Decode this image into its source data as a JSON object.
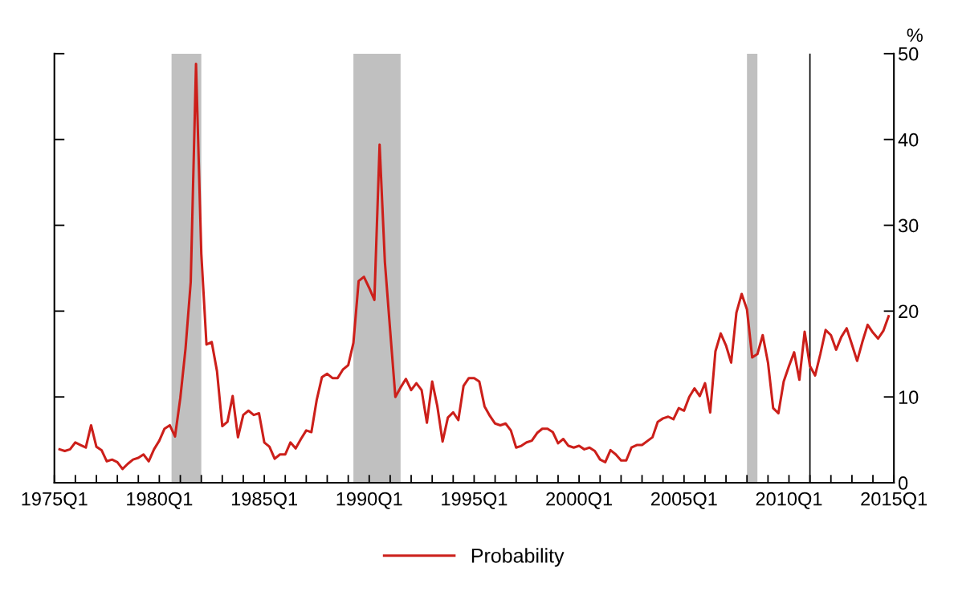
{
  "chart_data": {
    "type": "line",
    "ylabel": "%",
    "x": [
      "1975-04",
      "1975-07",
      "1975-10",
      "1976-01",
      "1976-04",
      "1976-07",
      "1976-10",
      "1977-01",
      "1977-04",
      "1977-07",
      "1977-10",
      "1978-01",
      "1978-04",
      "1978-07",
      "1978-10",
      "1979-01",
      "1979-04",
      "1979-07",
      "1979-10",
      "1980-01",
      "1980-04",
      "1980-07",
      "1980-10",
      "1981-01",
      "1981-04",
      "1981-07",
      "1981-10",
      "1982-01",
      "1982-04",
      "1982-07",
      "1982-10",
      "1983-01",
      "1983-04",
      "1983-07",
      "1983-10",
      "1984-01",
      "1984-04",
      "1984-07",
      "1984-10",
      "1985-01",
      "1985-04",
      "1985-07",
      "1985-10",
      "1986-01",
      "1986-04",
      "1986-07",
      "1986-10",
      "1987-01",
      "1987-04",
      "1987-07",
      "1987-10",
      "1988-01",
      "1988-04",
      "1988-07",
      "1988-10",
      "1989-01",
      "1989-04",
      "1989-07",
      "1989-10",
      "1990-01",
      "1990-04",
      "1990-07",
      "1990-10",
      "1991-01",
      "1991-04",
      "1991-07",
      "1991-10",
      "1992-01",
      "1992-04",
      "1992-07",
      "1992-10",
      "1993-01",
      "1993-04",
      "1993-07",
      "1993-10",
      "1994-01",
      "1994-04",
      "1994-07",
      "1994-10",
      "1995-01",
      "1995-04",
      "1995-07",
      "1995-10",
      "1996-01",
      "1996-04",
      "1996-07",
      "1996-10",
      "1997-01",
      "1997-04",
      "1997-07",
      "1997-10",
      "1998-01",
      "1998-04",
      "1998-07",
      "1998-10",
      "1999-01",
      "1999-04",
      "1999-07",
      "1999-10",
      "2000-01",
      "2000-04",
      "2000-07",
      "2000-10",
      "2001-01",
      "2001-04",
      "2001-07",
      "2001-10",
      "2002-01",
      "2002-04",
      "2002-07",
      "2002-10",
      "2003-01",
      "2003-07",
      "2003-10",
      "2004-01",
      "2004-04",
      "2004-07",
      "2004-10",
      "2005-01",
      "2005-04",
      "2005-07",
      "2005-10",
      "2006-01",
      "2006-04",
      "2006-07",
      "2006-10",
      "2007-01",
      "2007-04",
      "2007-07",
      "2007-10",
      "2008-01",
      "2008-04",
      "2008-07",
      "2008-10",
      "2009-01",
      "2009-04",
      "2009-07",
      "2009-10",
      "2010-01",
      "2010-04",
      "2010-07",
      "2010-10",
      "2011-01",
      "2011-04",
      "2011-07",
      "2011-10",
      "2012-01",
      "2012-04",
      "2012-07",
      "2012-10",
      "2013-01",
      "2013-04",
      "2013-07",
      "2013-10",
      "2014-01",
      "2014-04",
      "2014-07",
      "2014-10"
    ],
    "series": [
      {
        "name": "Probability",
        "color": "#cc1f1a",
        "values": [
          3.9,
          3.7,
          3.9,
          4.7,
          4.4,
          4.1,
          6.7,
          4.2,
          3.8,
          2.5,
          2.7,
          2.4,
          1.6,
          2.2,
          2.7,
          2.9,
          3.3,
          2.5,
          3.9,
          4.9,
          6.3,
          6.7,
          5.4,
          9.9,
          15.6,
          23.4,
          48.8,
          26.7,
          16.1,
          16.4,
          13.0,
          6.6,
          7.1,
          10.1,
          5.3,
          7.9,
          8.4,
          7.9,
          8.1,
          4.7,
          4.2,
          2.8,
          3.3,
          3.3,
          4.7,
          4.0,
          5.1,
          6.1,
          5.9,
          9.6,
          12.3,
          12.7,
          12.2,
          12.2,
          13.2,
          13.7,
          16.3,
          23.5,
          24.0,
          22.7,
          21.3,
          39.4,
          25.7,
          17.7,
          10.0,
          11.1,
          12.1,
          10.8,
          11.6,
          10.8,
          7.0,
          11.8,
          8.9,
          4.8,
          7.6,
          8.2,
          7.3,
          11.3,
          12.2,
          12.2,
          11.8,
          8.9,
          7.8,
          6.9,
          6.7,
          6.9,
          6.1,
          4.1,
          4.3,
          4.7,
          4.9,
          5.8,
          6.3,
          6.3,
          5.9,
          4.6,
          5.1,
          4.3,
          4.1,
          4.3,
          3.9,
          4.1,
          3.7,
          2.7,
          2.4,
          3.8,
          3.3,
          2.6,
          2.6,
          4.1,
          4.4,
          4.4,
          5.3,
          7.1,
          7.5,
          7.7,
          7.4,
          8.7,
          8.4,
          10.0,
          11.0,
          10.1,
          11.6,
          8.2,
          15.3,
          17.4,
          16.0,
          14.0,
          19.8,
          22.0,
          20.2,
          14.6,
          15.0,
          17.2,
          14.0,
          8.7,
          8.1,
          11.8,
          13.6,
          15.2,
          12.0,
          17.6,
          13.6,
          12.5,
          15.0,
          17.8,
          17.2,
          15.5,
          17.0,
          18.0,
          16.1,
          14.2,
          16.4,
          18.4,
          17.5,
          16.8,
          17.7,
          19.4
        ]
      }
    ],
    "xlim": [
      "1975-01",
      "2015-01"
    ],
    "xticks": [
      {
        "value": "1975-01",
        "label": "1975Q1"
      },
      {
        "value": "1976-01",
        "label": null
      },
      {
        "value": "1977-01",
        "label": null
      },
      {
        "value": "1978-01",
        "label": null
      },
      {
        "value": "1979-01",
        "label": null
      },
      {
        "value": "1980-01",
        "label": "1980Q1"
      },
      {
        "value": "1981-01",
        "label": null
      },
      {
        "value": "1982-01",
        "label": null
      },
      {
        "value": "1983-01",
        "label": null
      },
      {
        "value": "1984-01",
        "label": null
      },
      {
        "value": "1985-01",
        "label": "1985Q1"
      },
      {
        "value": "1986-01",
        "label": null
      },
      {
        "value": "1987-01",
        "label": null
      },
      {
        "value": "1988-01",
        "label": null
      },
      {
        "value": "1989-01",
        "label": null
      },
      {
        "value": "1990-01",
        "label": "1990Q1"
      },
      {
        "value": "1991-01",
        "label": null
      },
      {
        "value": "1992-01",
        "label": null
      },
      {
        "value": "1993-01",
        "label": null
      },
      {
        "value": "1994-01",
        "label": null
      },
      {
        "value": "1995-01",
        "label": "1995Q1"
      },
      {
        "value": "1996-01",
        "label": null
      },
      {
        "value": "1997-01",
        "label": null
      },
      {
        "value": "1998-01",
        "label": null
      },
      {
        "value": "1999-01",
        "label": null
      },
      {
        "value": "2000-01",
        "label": "2000Q1"
      },
      {
        "value": "2001-01",
        "label": null
      },
      {
        "value": "2002-01",
        "label": null
      },
      {
        "value": "2003-01",
        "label": null
      },
      {
        "value": "2004-01",
        "label": null
      },
      {
        "value": "2005-01",
        "label": "2005Q1"
      },
      {
        "value": "2006-01",
        "label": null
      },
      {
        "value": "2007-01",
        "label": null
      },
      {
        "value": "2008-01",
        "label": null
      },
      {
        "value": "2009-01",
        "label": null
      },
      {
        "value": "2010-01",
        "label": "2010Q1"
      },
      {
        "value": "2011-01",
        "label": null
      },
      {
        "value": "2012-01",
        "label": null
      },
      {
        "value": "2013-01",
        "label": null
      },
      {
        "value": "2014-01",
        "label": null
      },
      {
        "value": "2015-01",
        "label": "2015Q1"
      }
    ],
    "ylim": [
      0,
      50
    ],
    "yticks": [
      0,
      10,
      20,
      30,
      40,
      50
    ],
    "bands": [
      {
        "axis": "x",
        "from": "1980-08",
        "to": "1982-01",
        "color": "#c0c0c0"
      },
      {
        "axis": "x",
        "from": "1989-04",
        "to": "1991-07",
        "color": "#c0c0c0"
      },
      {
        "axis": "x",
        "from": "2008-01",
        "to": "2008-07",
        "color": "#c0c0c0"
      }
    ],
    "ref_lines": [
      {
        "axis": "x",
        "value": "2011-01",
        "color": "#000000",
        "line_style": "solid"
      }
    ],
    "grid": false,
    "legend": "bottom",
    "line_style": "solid",
    "marker": "none"
  }
}
